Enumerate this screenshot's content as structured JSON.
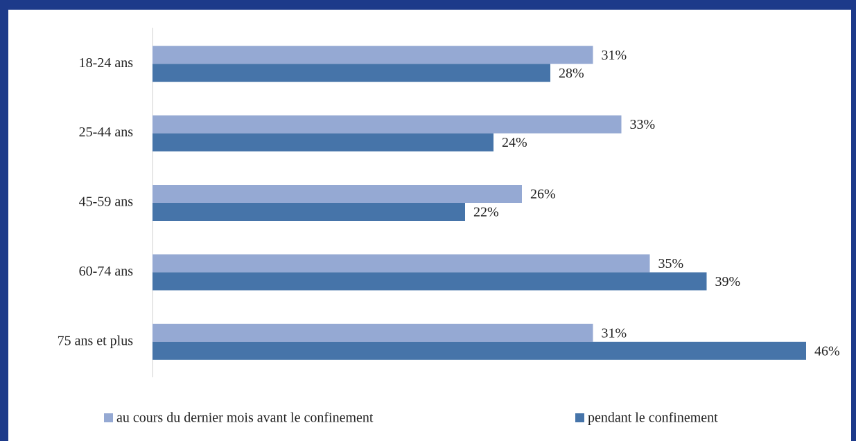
{
  "chart_data": {
    "type": "bar",
    "orientation": "horizontal",
    "categories": [
      "18-24 ans",
      "25-44 ans",
      "45-59 ans",
      "60-74 ans",
      "75 ans et plus"
    ],
    "series": [
      {
        "name": "au cours du dernier mois avant le confinement",
        "color": "#95a9d3",
        "values": [
          31,
          33,
          26,
          35,
          31
        ],
        "value_labels": [
          "31%",
          "33%",
          "26%",
          "35%",
          "31%"
        ]
      },
      {
        "name": "pendant le confinement",
        "color": "#4674a9",
        "values": [
          28,
          24,
          22,
          39,
          46
        ],
        "value_labels": [
          "28%",
          "24%",
          "22%",
          "39%",
          "46%"
        ]
      }
    ],
    "legend": "bottom"
  }
}
